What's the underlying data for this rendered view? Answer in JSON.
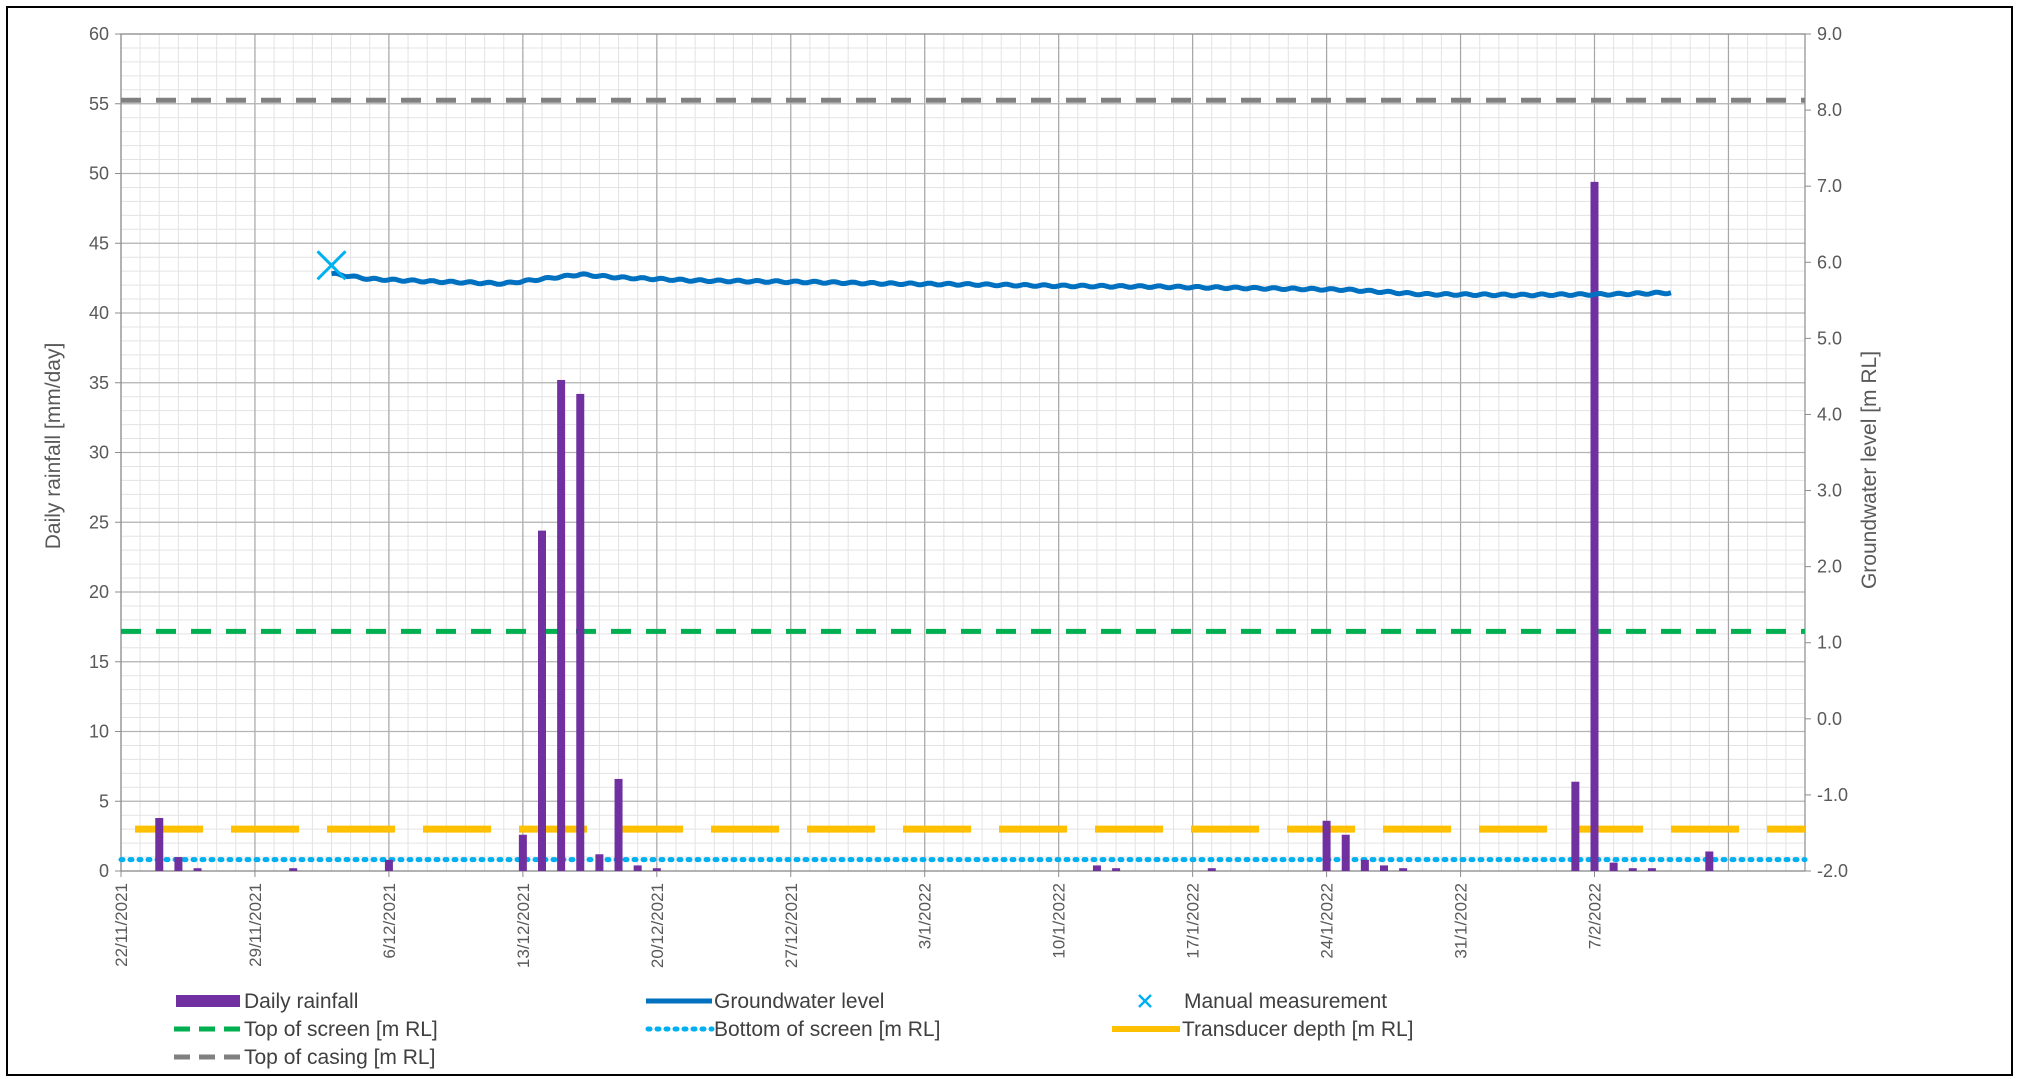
{
  "chart_data": {
    "type": "bar",
    "ylabel_left": "Daily rainfall [mm/day]",
    "ylabel_right": "Groundwater level [m RL]",
    "ylim_left": [
      0,
      60
    ],
    "ylim_right": [
      -2.0,
      9.0
    ],
    "yticks_left": [
      "0",
      "5",
      "10",
      "15",
      "20",
      "25",
      "30",
      "35",
      "40",
      "45",
      "50",
      "55",
      "60"
    ],
    "yticks_right": [
      "-2.0",
      "-1.0",
      "0.0",
      "1.0",
      "2.0",
      "3.0",
      "4.0",
      "5.0",
      "6.0",
      "7.0",
      "8.0",
      "9.0"
    ],
    "x_start": "2021-11-22",
    "x_end": "2022-02-18",
    "xticks": [
      "22/11/2021",
      "29/11/2021",
      "6/12/2021",
      "13/12/2021",
      "20/12/2021",
      "27/12/2021",
      "3/1/2022",
      "10/1/2022",
      "17/1/2022",
      "24/1/2022",
      "31/1/2022",
      "7/2/2022"
    ],
    "grid": true,
    "legend_position": "bottom",
    "rainfall": {
      "name": "Daily rainfall",
      "color": "#7030A0",
      "dates": [
        "2021-11-24",
        "2021-11-25",
        "2021-11-26",
        "2021-12-01",
        "2021-12-06",
        "2021-12-13",
        "2021-12-14",
        "2021-12-15",
        "2021-12-16",
        "2021-12-17",
        "2021-12-18",
        "2021-12-19",
        "2021-12-20",
        "2022-01-12",
        "2022-01-13",
        "2022-01-18",
        "2022-01-24",
        "2022-01-25",
        "2022-01-26",
        "2022-01-27",
        "2022-01-28",
        "2022-02-06",
        "2022-02-07",
        "2022-02-08",
        "2022-02-09",
        "2022-02-10",
        "2022-02-13"
      ],
      "values": [
        3.8,
        1.0,
        0.2,
        0.2,
        0.8,
        2.6,
        24.4,
        35.2,
        34.2,
        1.2,
        6.6,
        0.4,
        0.2,
        0.4,
        0.2,
        0.2,
        3.6,
        2.6,
        0.8,
        0.4,
        0.2,
        6.4,
        49.4,
        0.6,
        0.2,
        0.2,
        1.4
      ]
    },
    "groundwater": {
      "name": "Groundwater level",
      "color": "#0070C0",
      "dates": [
        "2021-12-03",
        "2021-12-05",
        "2021-12-08",
        "2021-12-12",
        "2021-12-14",
        "2021-12-16",
        "2021-12-18",
        "2021-12-22",
        "2021-12-28",
        "2022-01-01",
        "2022-01-05",
        "2022-01-10",
        "2022-01-15",
        "2022-01-20",
        "2022-01-25",
        "2022-01-29",
        "2022-02-03",
        "2022-02-08",
        "2022-02-11"
      ],
      "values": [
        5.85,
        5.78,
        5.75,
        5.72,
        5.78,
        5.84,
        5.8,
        5.76,
        5.74,
        5.72,
        5.71,
        5.69,
        5.68,
        5.66,
        5.64,
        5.58,
        5.57,
        5.58,
        5.6
      ]
    },
    "manual_measurement": {
      "name": "Manual measurement",
      "date": "2021-12-03",
      "value": 5.96,
      "color": "#00B0F0"
    },
    "reference_lines": [
      {
        "name": "Top of screen [m RL]",
        "value": 1.15,
        "color": "#00B050",
        "style": "dash"
      },
      {
        "name": "Bottom of screen [m RL]",
        "value": -1.85,
        "color": "#00B0F0",
        "style": "dot"
      },
      {
        "name": "Transducer depth [m RL]",
        "value": -1.45,
        "color": "#FFC000",
        "style": "longdash"
      },
      {
        "name": "Top of casing [m RL]",
        "value": 8.13,
        "color": "#808080",
        "style": "dash"
      }
    ]
  }
}
